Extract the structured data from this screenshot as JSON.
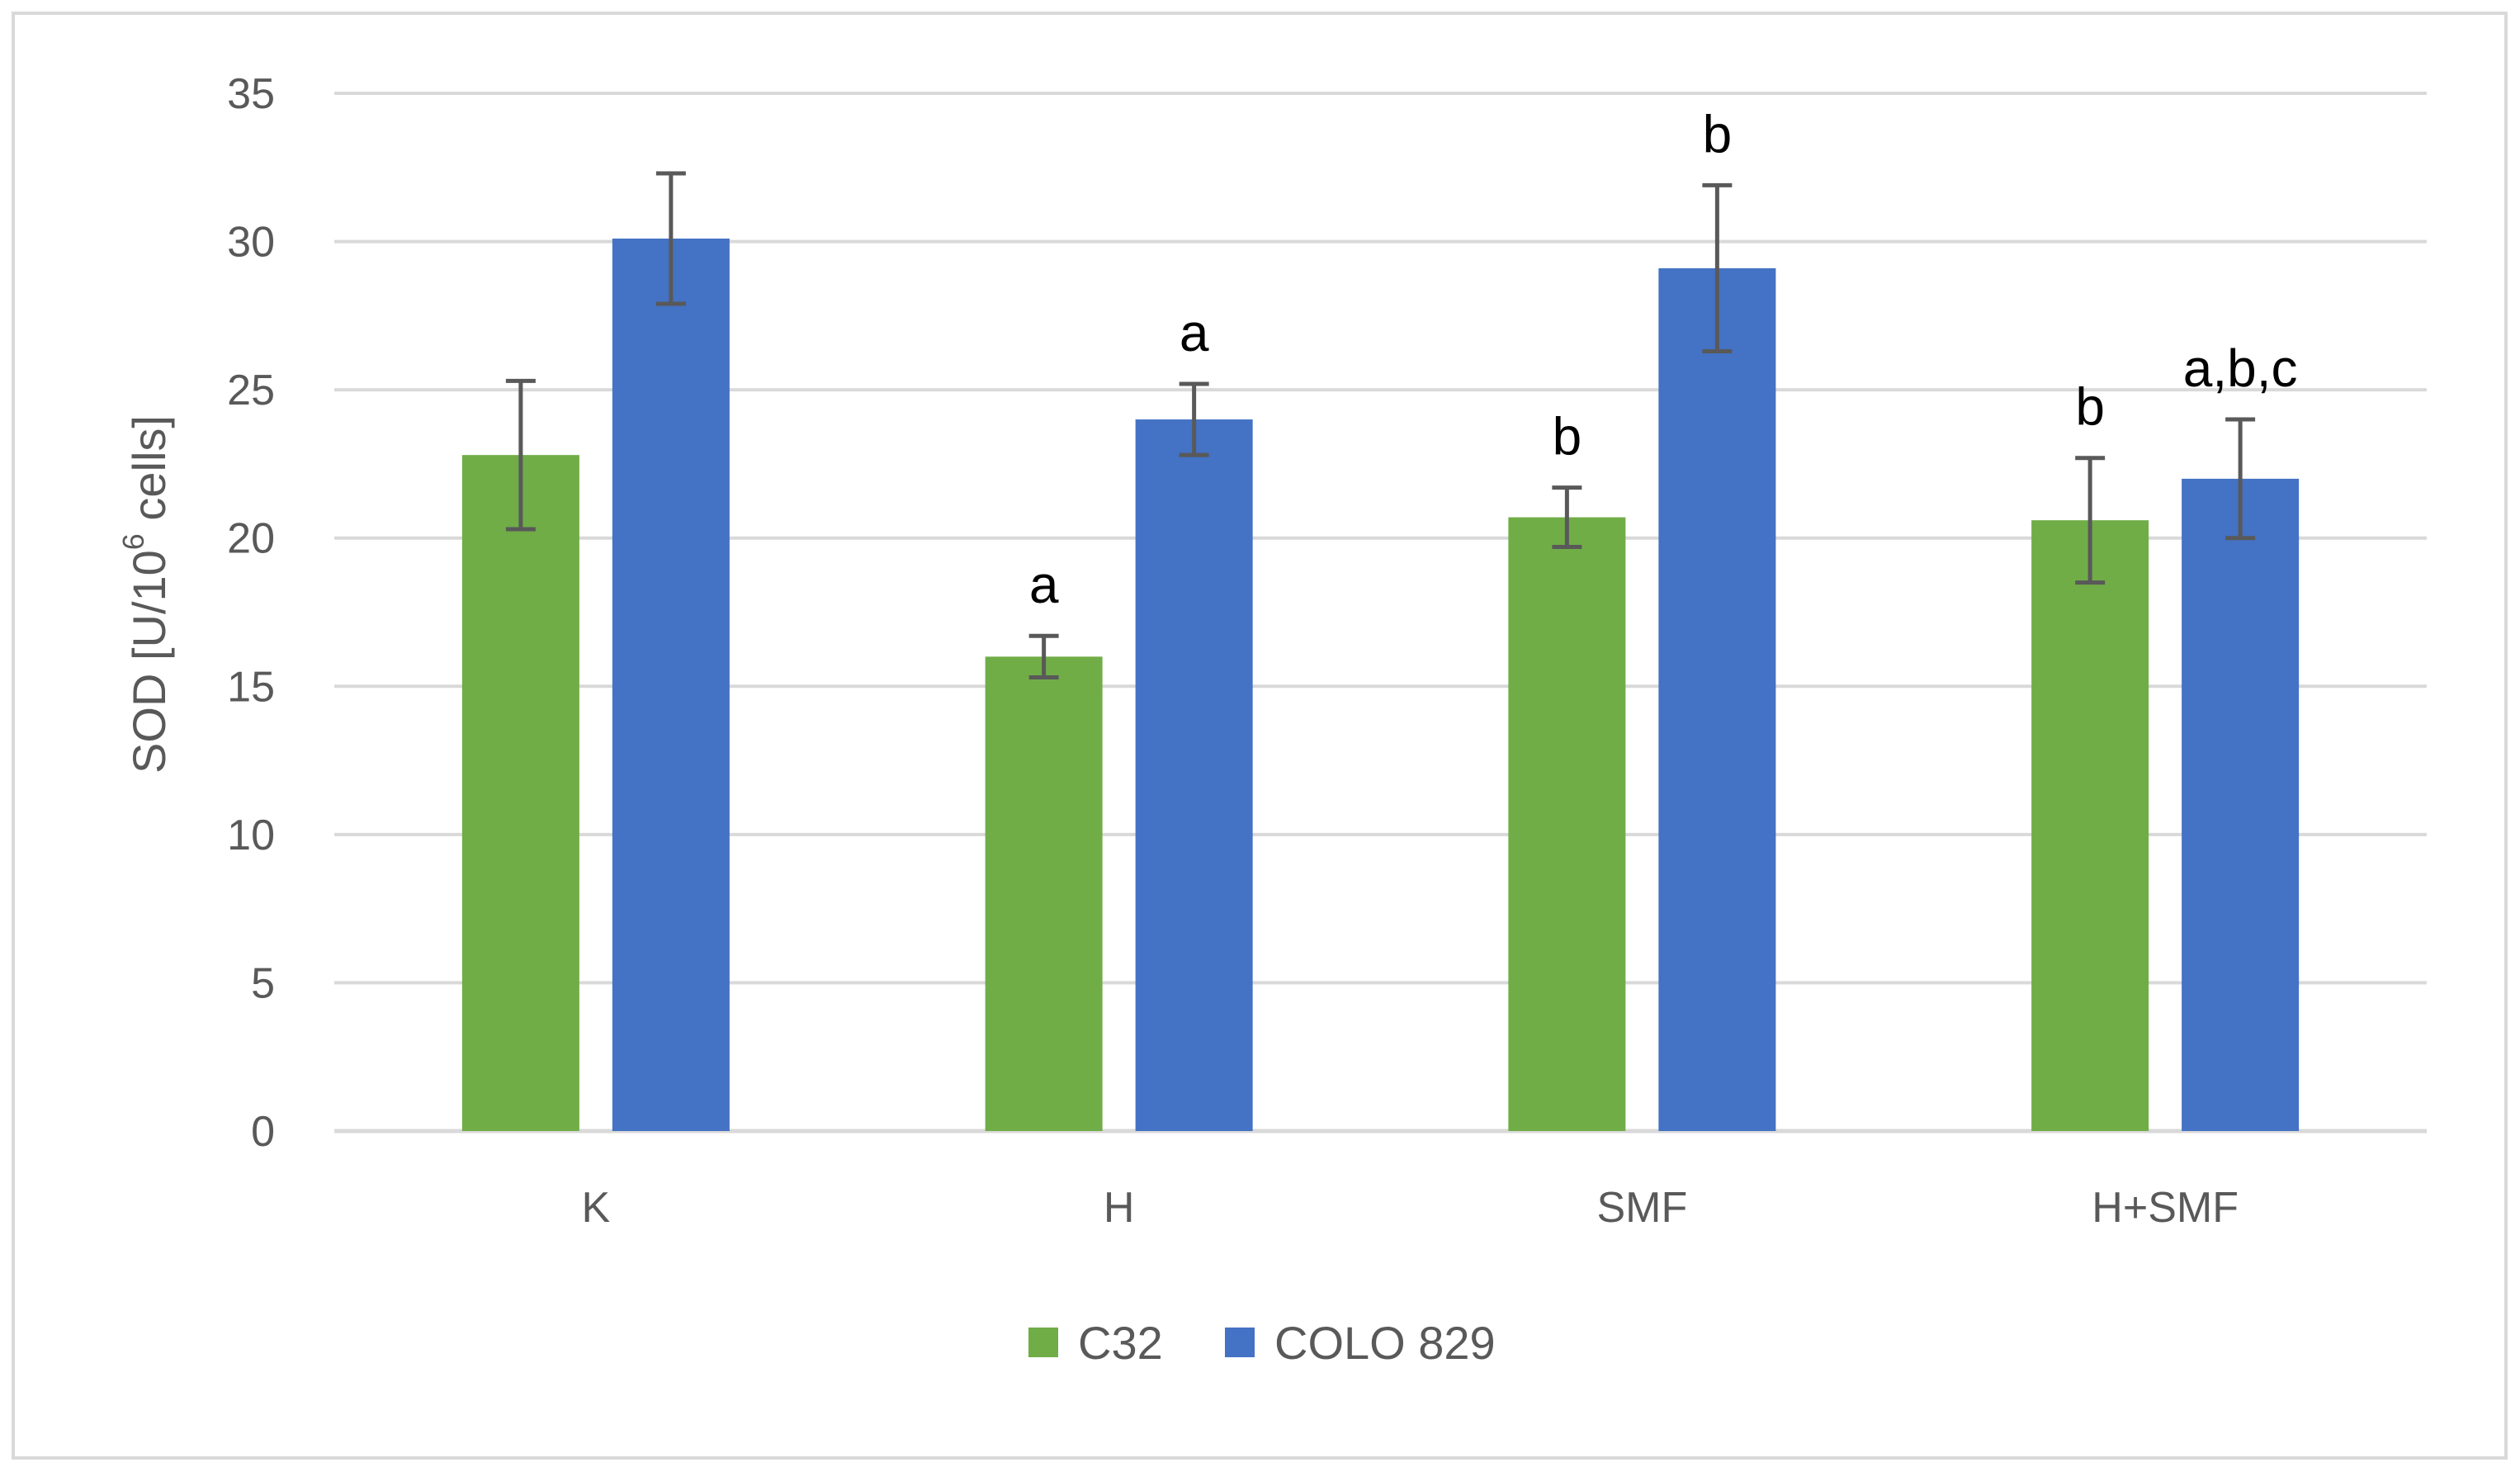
{
  "chart_data": {
    "type": "bar",
    "categories": [
      "K",
      "H",
      "SMF",
      "H+SMF"
    ],
    "series": [
      {
        "name": "C32",
        "color": "#70AD47",
        "values": [
          22.8,
          16.0,
          20.7,
          20.6
        ],
        "errors": [
          2.5,
          0.7,
          1.0,
          2.1
        ],
        "labels": [
          "",
          "a",
          "b",
          "b"
        ]
      },
      {
        "name": "COLO 829",
        "color": "#4472C4",
        "values": [
          30.1,
          24.0,
          29.1,
          22.0
        ],
        "errors": [
          2.2,
          1.2,
          2.8,
          2.0
        ],
        "labels": [
          "",
          "a",
          "b",
          "a,b,c"
        ]
      }
    ],
    "ylabel_main": "SOD [U/10",
    "ylabel_sup": "6",
    "ylabel_tail": " cells]",
    "ylim": [
      0,
      35
    ],
    "yticks": [
      0,
      5,
      10,
      15,
      20,
      25,
      30,
      35
    ],
    "grid": true,
    "legend_position": "bottom"
  }
}
